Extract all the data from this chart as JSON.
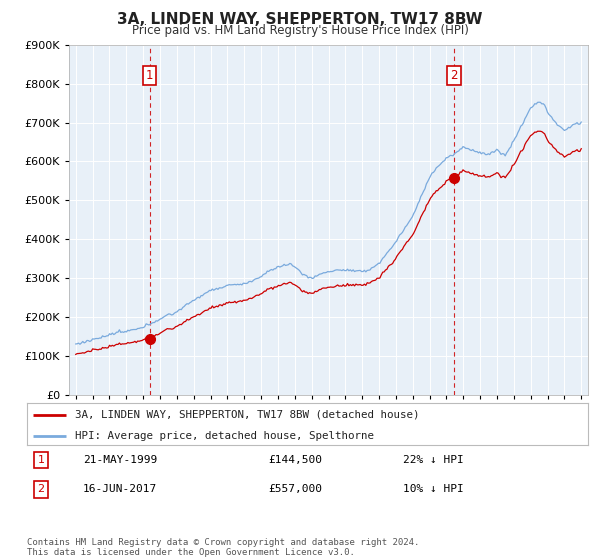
{
  "title": "3A, LINDEN WAY, SHEPPERTON, TW17 8BW",
  "subtitle": "Price paid vs. HM Land Registry's House Price Index (HPI)",
  "legend_line1": "3A, LINDEN WAY, SHEPPERTON, TW17 8BW (detached house)",
  "legend_line2": "HPI: Average price, detached house, Spelthorne",
  "annotation1_date": "21-MAY-1999",
  "annotation1_price": "£144,500",
  "annotation1_hpi": "22% ↓ HPI",
  "annotation2_date": "16-JUN-2017",
  "annotation2_price": "£557,000",
  "annotation2_hpi": "10% ↓ HPI",
  "footnote": "Contains HM Land Registry data © Crown copyright and database right 2024.\nThis data is licensed under the Open Government Licence v3.0.",
  "ylim": [
    0,
    900000
  ],
  "yticks": [
    0,
    100000,
    200000,
    300000,
    400000,
    500000,
    600000,
    700000,
    800000,
    900000
  ],
  "sale1_year": 1999.38,
  "sale1_price": 144500,
  "sale2_year": 2017.45,
  "sale2_price": 557000,
  "hpi_color": "#7aaadd",
  "price_color": "#cc0000",
  "vline_color": "#cc0000",
  "background_color": "#ffffff",
  "plot_bg_color": "#e8f0f8",
  "grid_color": "#ffffff"
}
